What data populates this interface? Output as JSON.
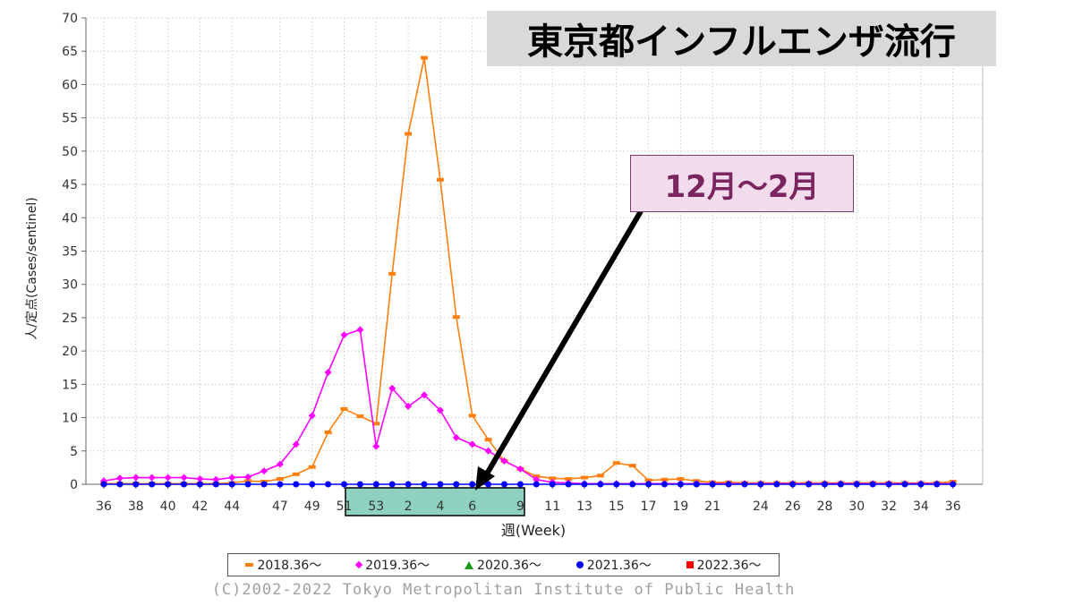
{
  "title": "東京都インフルエンザ流行",
  "callout": "12月～2月",
  "copyright": "(C)2002-2022 Tokyo Metropolitan Institute of Public Health",
  "chart_data": {
    "type": "line",
    "xlabel": "週(Week)",
    "ylabel": "人/定点(Cases/sentinel)",
    "ylim": [
      0,
      70
    ],
    "yticks": [
      0,
      5,
      10,
      15,
      20,
      25,
      30,
      35,
      40,
      45,
      50,
      55,
      60,
      65,
      70
    ],
    "x_tick_labels": [
      "36",
      "38",
      "40",
      "42",
      "44",
      "47",
      "49",
      "51",
      "53",
      "2",
      "4",
      "6",
      "9",
      "11",
      "13",
      "15",
      "17",
      "19",
      "21",
      "24",
      "26",
      "28",
      "30",
      "32",
      "34",
      "36"
    ],
    "highlight_weeks": "51–9",
    "grid": true,
    "legend_position": "bottom",
    "series": [
      {
        "name": "2018.36～",
        "color": "#ff7f0e",
        "marker": "bar",
        "values": [
          0.1,
          0.1,
          0.1,
          0.1,
          0.1,
          0.1,
          0.1,
          0.1,
          0.2,
          0.5,
          0.4,
          0.8,
          1.5,
          2.6,
          7.8,
          11.3,
          10.2,
          9.1,
          31.6,
          52.6,
          64.0,
          45.7,
          25.1,
          10.3,
          6.7,
          3.5,
          2.3,
          1.2,
          0.9,
          0.8,
          1.0,
          1.3,
          3.2,
          2.8,
          0.6,
          0.7,
          0.8,
          0.5,
          0.3,
          0.3,
          0.2,
          0.2,
          0.2,
          0.2,
          0.2,
          0.2,
          0.2,
          0.2,
          0.2,
          0.2,
          0.2,
          0.2,
          0.2,
          0.4
        ]
      },
      {
        "name": "2019.36～",
        "color": "#ff00ff",
        "marker": "diamond",
        "values": [
          0.5,
          0.9,
          1.0,
          1.0,
          1.0,
          1.0,
          0.8,
          0.7,
          1.0,
          1.1,
          2.0,
          3.0,
          6.0,
          10.3,
          16.8,
          22.4,
          23.2,
          5.7,
          14.4,
          11.7,
          13.4,
          11.1,
          7.0,
          6.0,
          5.0,
          3.5,
          2.3,
          0.7,
          0.3,
          0.2,
          0.1,
          0.1,
          0.1,
          0.1,
          0.1,
          0.1,
          0.1,
          0.1,
          0.1,
          0.1,
          0.1,
          0.1,
          0.1,
          0.1,
          0.1,
          0.1,
          0.1,
          0.1,
          0.1,
          0.1,
          0.1,
          0.1,
          0.1,
          0.1
        ]
      },
      {
        "name": "2020.36～",
        "color": "#1a9a1a",
        "marker": "triangle",
        "values": []
      },
      {
        "name": "2021.36～",
        "color": "#0000ff",
        "marker": "circle",
        "values": [
          0,
          0,
          0,
          0,
          0,
          0,
          0,
          0,
          0,
          0,
          0,
          0,
          0,
          0,
          0,
          0,
          0,
          0,
          0,
          0,
          0,
          0,
          0,
          0,
          0,
          0,
          0,
          0,
          0,
          0,
          0,
          0,
          0,
          0,
          0,
          0,
          0,
          0,
          0,
          0,
          0,
          0,
          0,
          0,
          0,
          0,
          0,
          0,
          0,
          0,
          0,
          0,
          0,
          0
        ]
      },
      {
        "name": "2022.36～",
        "color": "#ff0000",
        "marker": "square",
        "values": []
      }
    ]
  }
}
